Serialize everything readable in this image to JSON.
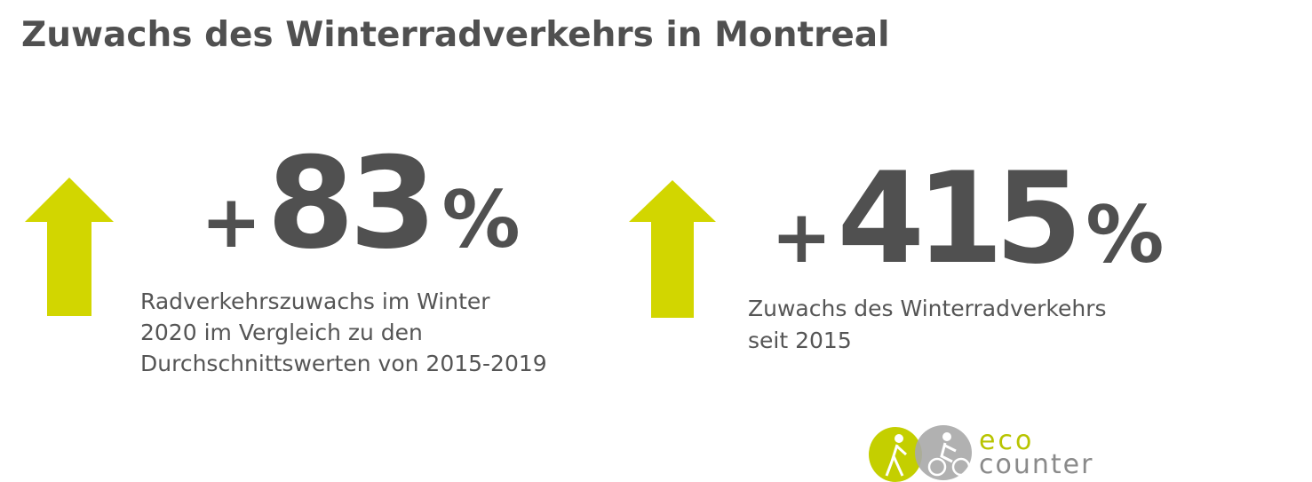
{
  "header": {
    "title": "Zuwachs des Winterradverkehrs in Montreal"
  },
  "stats": [
    {
      "sign": "+",
      "number": "83",
      "unit": "%",
      "description": [
        "Radverkehrszuwachs im Winter",
        "2020 im Vergleich zu den",
        "Durchschnittswerten von 2015-2019"
      ]
    },
    {
      "sign": "+",
      "number": "415",
      "unit": "%",
      "description": [
        "Zuwachs des Winterradverkehrs",
        "seit 2015"
      ]
    }
  ],
  "logo": {
    "line1": "eco",
    "line2": "counter"
  }
}
